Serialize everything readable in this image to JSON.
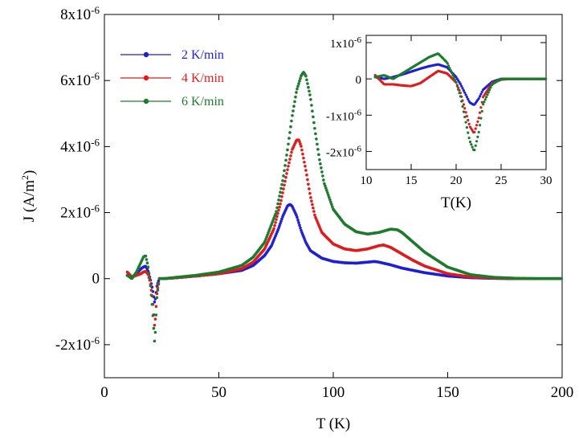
{
  "chart_data": [
    {
      "type": "scatter",
      "title": "",
      "xlabel": "T (K)",
      "ylabel": "J (A/m",
      "ylabel_sup": "2",
      "ylabel_tail": ")",
      "xlim": [
        0,
        200
      ],
      "ylim": [
        -3e-06,
        8e-06
      ],
      "xticks": [
        0,
        50,
        100,
        150,
        200
      ],
      "xtick_labels": [
        "0",
        "50",
        "100",
        "150",
        "200"
      ],
      "yticks": [
        -2e-06,
        0,
        2e-06,
        4e-06,
        6e-06,
        8e-06
      ],
      "ytick_labels": [
        {
          "base": "-2x10",
          "exp": "-6"
        },
        {
          "base": "0",
          "exp": ""
        },
        {
          "base": "2x10",
          "exp": "-6"
        },
        {
          "base": "4x10",
          "exp": "-6"
        },
        {
          "base": "6x10",
          "exp": "-6"
        },
        {
          "base": "8x10",
          "exp": "-6"
        }
      ],
      "grid": false,
      "legend_position": "top-left",
      "series": [
        {
          "name": "2 K/min",
          "color": "#1f1fd6",
          "x": [
            10,
            12,
            14,
            16,
            17,
            18,
            19,
            20,
            21,
            22,
            23,
            24,
            26,
            30,
            40,
            50,
            60,
            65,
            70,
            73,
            76,
            78,
            80,
            81,
            82,
            84,
            86,
            88,
            90,
            95,
            100,
            105,
            110,
            115,
            118,
            120,
            125,
            130,
            140,
            150,
            160,
            170,
            180,
            190,
            200
          ],
          "y": [
            1e-07,
            5e-08,
            1.5e-07,
            3e-07,
            3.5e-07,
            3.8e-07,
            2.5e-07,
            0.0,
            -3e-07,
            -7.5e-07,
            -2e-07,
            0.0,
            0.0,
            2e-08,
            8e-08,
            1.5e-07,
            2.5e-07,
            4e-07,
            7e-07,
            1e-06,
            1.5e-06,
            1.9e-06,
            2.2e-06,
            2.25e-06,
            2.2e-06,
            1.9e-06,
            1.45e-06,
            1.1e-06,
            8.5e-07,
            6.2e-07,
            5.2e-07,
            4.8e-07,
            4.7e-07,
            5e-07,
            5.2e-07,
            5e-07,
            4.2e-07,
            3.2e-07,
            1.8e-07,
            8e-08,
            3e-08,
            1e-08,
            0.0,
            0.0,
            0.0
          ]
        },
        {
          "name": "4 K/min",
          "color": "#e01b1b",
          "x": [
            10,
            12,
            14,
            16,
            17,
            18,
            19,
            20,
            21,
            22,
            23,
            24,
            26,
            30,
            40,
            50,
            60,
            65,
            70,
            74,
            77,
            80,
            82,
            84,
            85,
            86,
            88,
            90,
            92,
            95,
            100,
            105,
            110,
            115,
            120,
            122,
            125,
            130,
            135,
            140,
            150,
            160,
            170,
            180,
            190,
            200
          ],
          "y": [
            2e-07,
            5e-08,
            1e-07,
            1.5e-07,
            2e-07,
            2.2e-07,
            1.5e-07,
            -1e-07,
            -6e-07,
            -1.5e-06,
            -4e-07,
            0.0,
            0.0,
            2e-08,
            8e-08,
            1.5e-07,
            3e-07,
            5e-07,
            9e-07,
            1.5e-06,
            2.3e-06,
            3.3e-06,
            3.9e-06,
            4.2e-06,
            4.2e-06,
            4e-06,
            3.3e-06,
            2.5e-06,
            1.9e-06,
            1.4e-06,
            1.05e-06,
            9e-07,
            8.5e-07,
            9e-07,
            1e-06,
            1.02e-06,
            9.5e-07,
            7.5e-07,
            5.5e-07,
            3.8e-07,
            1.5e-07,
            5e-08,
            2e-08,
            0.0,
            0.0,
            0.0
          ]
        },
        {
          "name": "6 K/min",
          "color": "#1c7a2c",
          "x": [
            10,
            12,
            14,
            16,
            17,
            18,
            19,
            20,
            21,
            22,
            23,
            24,
            26,
            30,
            40,
            50,
            60,
            65,
            70,
            75,
            78,
            80,
            82,
            84,
            86,
            87,
            88,
            90,
            92,
            94,
            96,
            100,
            105,
            110,
            115,
            120,
            125,
            128,
            130,
            135,
            140,
            150,
            160,
            170,
            180,
            190,
            200
          ],
          "y": [
            1e-07,
            0.0,
            2e-07,
            5e-07,
            6.5e-07,
            7e-07,
            4e-07,
            -1e-07,
            -9e-07,
            -2e-06,
            -5e-07,
            0.0,
            0.0,
            3e-08,
            1e-07,
            2e-07,
            4e-07,
            6.5e-07,
            1.1e-06,
            2e-06,
            3e-06,
            3.9e-06,
            4.9e-06,
            5.7e-06,
            6.15e-06,
            6.25e-06,
            6.15e-06,
            5.5e-06,
            4.5e-06,
            3.6e-06,
            2.9e-06,
            2.1e-06,
            1.65e-06,
            1.42e-06,
            1.35e-06,
            1.4e-06,
            1.5e-06,
            1.48e-06,
            1.4e-06,
            1.1e-06,
            8e-07,
            3.5e-07,
            1.2e-07,
            4e-08,
            1e-08,
            0.0,
            0.0
          ]
        }
      ]
    },
    {
      "type": "scatter",
      "title": "",
      "xlabel": "T(K)",
      "ylabel": "",
      "xlim": [
        10,
        30
      ],
      "ylim": [
        -2.5e-06,
        1.2e-06
      ],
      "xticks": [
        10,
        15,
        20,
        25,
        30
      ],
      "xtick_labels": [
        "10",
        "15",
        "20",
        "25",
        "30"
      ],
      "yticks": [
        -2e-06,
        -1e-06,
        0,
        1e-06
      ],
      "ytick_labels": [
        {
          "base": "-2x10",
          "exp": "-6"
        },
        {
          "base": "-1x10",
          "exp": "-6"
        },
        {
          "base": "0",
          "exp": ""
        },
        {
          "base": "1x10",
          "exp": "-6"
        }
      ],
      "grid": false,
      "series": [
        {
          "color": "#1f1fd6",
          "x": [
            11,
            12,
            13,
            14,
            15,
            16,
            17,
            18,
            19,
            20,
            20.5,
            21,
            21.5,
            22,
            22.5,
            23,
            24,
            25,
            26,
            28,
            30
          ],
          "y": [
            5e-08,
            0.0,
            5e-08,
            1.2e-07,
            2e-07,
            2.8e-07,
            3.5e-07,
            4e-07,
            3.2e-07,
            5e-08,
            -1.5e-07,
            -4e-07,
            -6.5e-07,
            -7.2e-07,
            -5.5e-07,
            -3e-07,
            -8e-08,
            0.0,
            0.0,
            0.0,
            0.0
          ]
        },
        {
          "color": "#e01b1b",
          "x": [
            11,
            12,
            13,
            14,
            15,
            16,
            17,
            18,
            19,
            20,
            20.5,
            21,
            21.5,
            22,
            22.5,
            23,
            24,
            25,
            26,
            28,
            30
          ],
          "y": [
            1e-07,
            -1.5e-07,
            -1.5e-07,
            -1.8e-07,
            -2e-07,
            -1.2e-07,
            5e-08,
            2.2e-07,
            1.5e-07,
            -1e-07,
            -4e-07,
            -8.5e-07,
            -1.3e-06,
            -1.5e-06,
            -1.1e-06,
            -5e-07,
            -1.2e-07,
            -2e-08,
            0.0,
            0.0,
            0.0
          ]
        },
        {
          "color": "#1c7a2c",
          "x": [
            11,
            12,
            13,
            14,
            15,
            16,
            17,
            18,
            19,
            20,
            20.5,
            21,
            21.5,
            22,
            22.5,
            23,
            24,
            25,
            26,
            28,
            30
          ],
          "y": [
            5e-08,
            1e-07,
            0.0,
            1.5e-07,
            3e-07,
            4.5e-07,
            6e-07,
            7e-07,
            4.5e-07,
            -1e-07,
            -5e-07,
            -1.1e-06,
            -1.7e-06,
            -2e-06,
            -1.5e-06,
            -7e-07,
            -1.5e-07,
            0.0,
            0.0,
            0.0,
            0.0
          ]
        }
      ]
    }
  ]
}
